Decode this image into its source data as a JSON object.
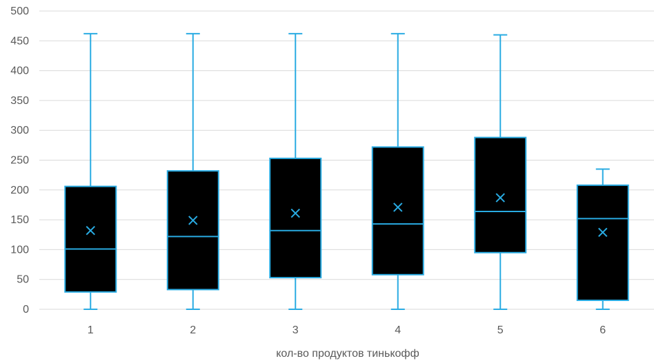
{
  "chart_data": {
    "type": "box",
    "title": "",
    "xlabel": "кол-во продуктов тинькофф",
    "ylabel": "",
    "ylim": [
      0,
      500
    ],
    "yticks": [
      0,
      50,
      100,
      150,
      200,
      250,
      300,
      350,
      400,
      450,
      500
    ],
    "grid": true,
    "categories": [
      "1",
      "2",
      "3",
      "4",
      "5",
      "6"
    ],
    "boxes": [
      {
        "category": "1",
        "min": 0,
        "q1": 29,
        "median": 101,
        "q3": 206,
        "max": 462,
        "mean": 132
      },
      {
        "category": "2",
        "min": 0,
        "q1": 33,
        "median": 122,
        "q3": 232,
        "max": 462,
        "mean": 149
      },
      {
        "category": "3",
        "min": 0,
        "q1": 53,
        "median": 132,
        "q3": 253,
        "max": 462,
        "mean": 161
      },
      {
        "category": "4",
        "min": 0,
        "q1": 58,
        "median": 143,
        "q3": 272,
        "max": 462,
        "mean": 171
      },
      {
        "category": "5",
        "min": 0,
        "q1": 95,
        "median": 164,
        "q3": 288,
        "max": 460,
        "mean": 187
      },
      {
        "category": "6",
        "min": 0,
        "q1": 15,
        "median": 152,
        "q3": 208,
        "max": 235,
        "mean": 129
      }
    ],
    "colors": {
      "box_fill": "#000000",
      "box_stroke": "#29ABE2",
      "grid": "#d9d9d9",
      "text": "#595959"
    }
  }
}
